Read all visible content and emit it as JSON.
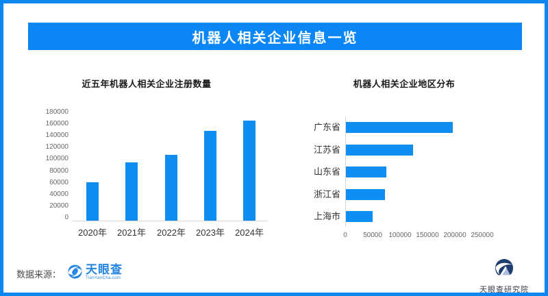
{
  "header": {
    "title": "机器人相关企业信息一览"
  },
  "colors": {
    "accent_blue": "#0a87f5",
    "bar_blue": "#0e8df2",
    "tianyancha_logo_blue": "#2587e0",
    "institute_logo_navy": "#1f3d71"
  },
  "chart_data": [
    {
      "type": "bar",
      "orientation": "vertical",
      "title": "近五年机器人相关企业注册数量",
      "categories": [
        "2020年",
        "2021年",
        "2022年",
        "2023年",
        "2024年"
      ],
      "values": [
        63000,
        96000,
        109000,
        148000,
        165000
      ],
      "xlabel": "",
      "ylabel": "",
      "ylim": [
        0,
        180000
      ],
      "ytick_step": 20000,
      "grid": false,
      "legend": false
    },
    {
      "type": "bar",
      "orientation": "horizontal",
      "title": "机器人相关企业地区分布",
      "categories": [
        "广东省",
        "江苏省",
        "山东省",
        "浙江省",
        "上海市"
      ],
      "values": [
        195000,
        123000,
        74000,
        71000,
        49000
      ],
      "xlabel": "",
      "ylabel": "",
      "xlim": [
        0,
        250000
      ],
      "xtick_step": 50000,
      "grid": false,
      "legend": false
    }
  ],
  "footer": {
    "source_label": "数据来源：",
    "tianyancha_logo_text": "天眼查",
    "tianyancha_logo_sub": "TianYanCha.com",
    "institute_name": "天眼查研究院"
  }
}
